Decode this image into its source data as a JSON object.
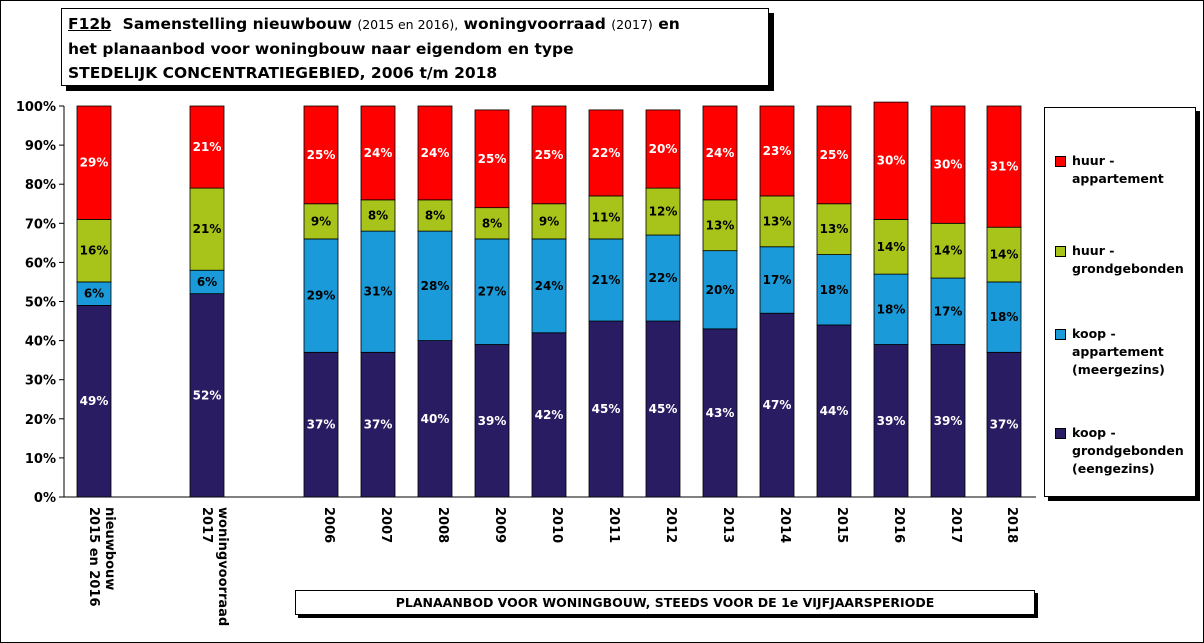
{
  "title": {
    "code": "F12b",
    "part1": "Samenstelling nieuwbouw",
    "part1_small": "(2015 en 2016),",
    "part2": "woningvoorraad",
    "part2_small": "(2017)",
    "part2_end": "en",
    "line2": "het planaanbod voor woningbouw naar eigendom en type",
    "line3": "STEDELIJK CONCENTRATIEGEBIED, 2006 t/m 2018"
  },
  "footer_label": "PLANAANBOD VOOR WONINGBOUW, STEEDS VOOR DE 1e VIJFJAARSPERIODE",
  "colors": {
    "koop_grond": "#2a1c63",
    "koop_app": "#1a9ad9",
    "huur_grond": "#a8c41a",
    "huur_app": "#ff0000"
  },
  "chart_data": {
    "type": "bar",
    "stacked": true,
    "percent": true,
    "ylim": [
      0,
      100
    ],
    "yticks": [
      "0%",
      "10%",
      "20%",
      "30%",
      "40%",
      "50%",
      "60%",
      "70%",
      "80%",
      "90%",
      "100%"
    ],
    "grid": false,
    "legend_position": "right",
    "categories": [
      "nieuwbouw\n2015 en 2016",
      "woningvoorraad\n2017",
      "2006",
      "2007",
      "2008",
      "2009",
      "2010",
      "2011",
      "2012",
      "2013",
      "2014",
      "2015",
      "2016",
      "2017",
      "2018"
    ],
    "series": [
      {
        "name": "koop -\ngrondgebonden\n(eengezins)",
        "color": "#2a1c63",
        "label_color": "#ffffff",
        "values": [
          49,
          52,
          37,
          37,
          40,
          39,
          42,
          45,
          45,
          43,
          47,
          44,
          39,
          39,
          37
        ],
        "labels": [
          "49%",
          "52%",
          "37%",
          "37%",
          "40%",
          "39%",
          "42%",
          "45%",
          "45%",
          "43%",
          "47%",
          "44%",
          "39%",
          "39%",
          "37%"
        ]
      },
      {
        "name": "koop -\nappartement\n(meergezins)",
        "color": "#1a9ad9",
        "label_color": "#000000",
        "values": [
          6,
          6,
          29,
          31,
          28,
          27,
          24,
          21,
          22,
          20,
          17,
          18,
          18,
          17,
          18
        ],
        "labels": [
          "6%",
          "6%",
          "29%",
          "31%",
          "28%",
          "27%",
          "24%",
          "21%",
          "22%",
          "20%",
          "17%",
          "18%",
          "18%",
          "17%",
          "18%"
        ]
      },
      {
        "name": "huur -\ngrondgebonden",
        "color": "#a8c41a",
        "label_color": "#000000",
        "values": [
          16,
          21,
          9,
          8,
          8,
          8,
          9,
          11,
          12,
          13,
          13,
          13,
          14,
          14,
          14
        ],
        "labels": [
          "16%",
          "21%",
          "9%",
          "8%",
          "8%",
          "8%",
          "9%",
          "11%",
          "12%",
          "13%",
          "13%",
          "13%",
          "14%",
          "14%",
          "14%"
        ]
      },
      {
        "name": "huur -\nappartement",
        "color": "#ff0000",
        "label_color": "#ffffff",
        "values": [
          29,
          21,
          25,
          24,
          24,
          25,
          25,
          22,
          20,
          24,
          23,
          25,
          30,
          30,
          31
        ],
        "labels": [
          "29%",
          "21%",
          "25%",
          "24%",
          "24%",
          "25%",
          "25%",
          "22%",
          "20%",
          "24%",
          "23%",
          "25%",
          "30%",
          "30%",
          "31%"
        ]
      }
    ]
  }
}
